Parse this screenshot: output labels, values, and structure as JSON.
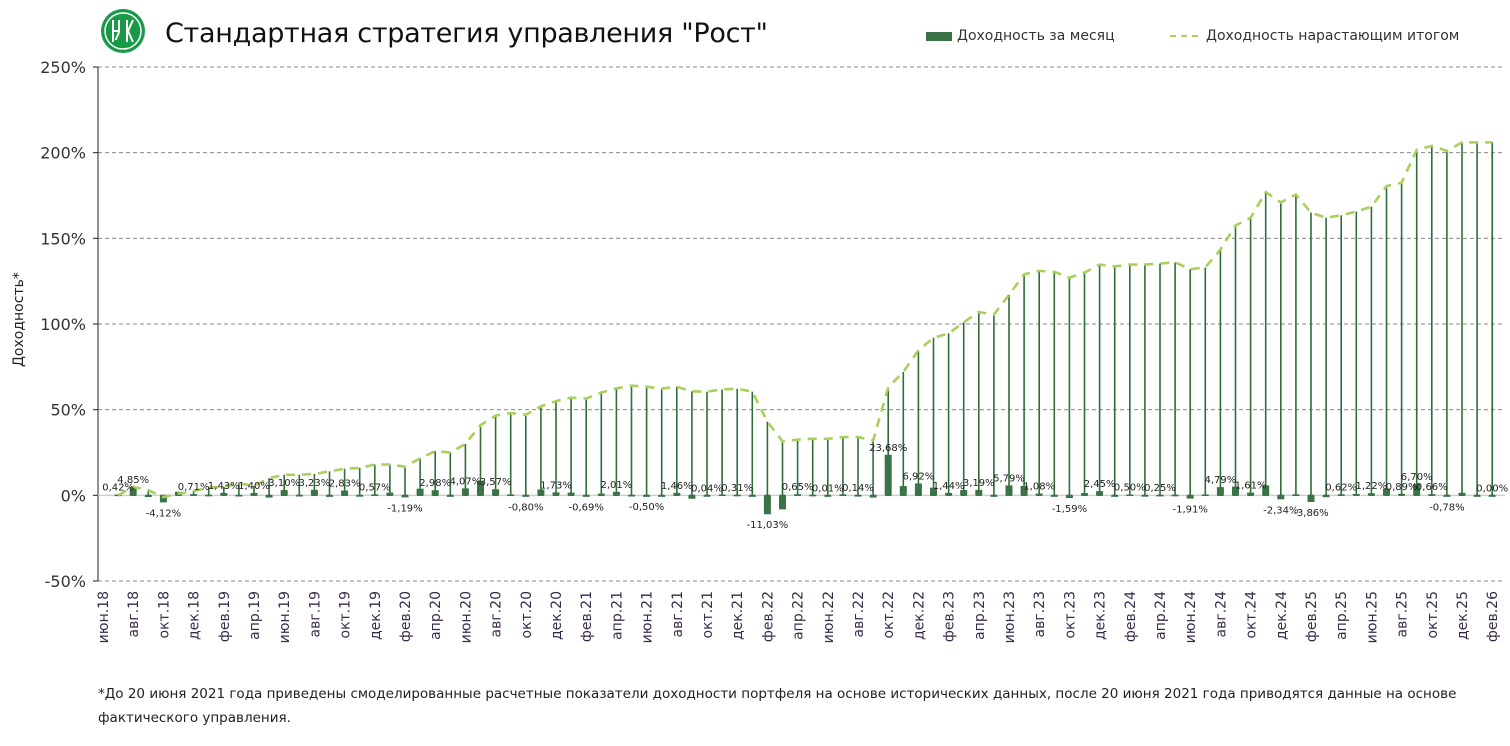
{
  "title": "Стандартная стратегия управления \"Рост\"",
  "legend": {
    "monthly": "Доходность за месяц",
    "cumulative": "Доходность нарастающим итогом"
  },
  "footnote": "*До 20 июня 2021 года приведены смоделированные расчетные показатели доходности портфеля на основе исторических данных, после 20 июня 2021 года приводятся данные на основе фактического управления.",
  "colors": {
    "bar": "#3a7446",
    "drop_line": "#2f6e3b",
    "cumulative_line": "#a9d05a",
    "grid": "#8a8a8a",
    "logo": "#1a9a48"
  },
  "chart_data": {
    "type": "bar+line",
    "title": "Стандартная стратегия управления \"Рост\"",
    "ylabel": "Доходность*",
    "xlabel": "",
    "ylim": [
      -50,
      250
    ],
    "yticks": [
      -50,
      0,
      50,
      100,
      150,
      200,
      250
    ],
    "ytick_labels": [
      "-50%",
      "0%",
      "50%",
      "100%",
      "150%",
      "200%",
      "250%"
    ],
    "grid": "horizontal dashed",
    "legend_placement": "top-right",
    "x_tick_labels": [
      "июн.18",
      "авг.18",
      "окт.18",
      "дек.18",
      "фев.19",
      "апр.19",
      "июн.19",
      "авг.19",
      "окт.19",
      "дек.19",
      "фев.20",
      "апр.20",
      "июн.20",
      "авг.20",
      "окт.20",
      "дек.20",
      "фев.21",
      "апр.21",
      "июн.21",
      "авг.21",
      "окт.21",
      "дек.21",
      "фев.22",
      "апр.22",
      "июн.22",
      "авг.22",
      "окт.22",
      "дек.22",
      "фев.23",
      "апр.23",
      "июн.23",
      "авг.23",
      "окт.23",
      "дек.23",
      "фев.24",
      "апр.24",
      "июн.24",
      "авг.24",
      "окт.24",
      "дек.24",
      "фев.25",
      "апр.25",
      "июн.25",
      "авг.25",
      "окт.25",
      "дек.25",
      "фев.26"
    ],
    "series": [
      {
        "name": "Доходность за месяц",
        "type": "bar",
        "unit": "%",
        "values": [
          null,
          0.42,
          4.85,
          -1.0,
          -4.12,
          2.1,
          0.71,
          0.3,
          1.43,
          0.2,
          1.4,
          -1.3,
          3.1,
          0.2,
          3.23,
          -0.5,
          2.83,
          0.1,
          0.57,
          1.6,
          -1.19,
          3.9,
          2.98,
          -0.6,
          4.07,
          8.4,
          3.57,
          0.5,
          -0.8,
          3.4,
          1.73,
          1.6,
          -0.69,
          1.0,
          2.01,
          0.2,
          -0.5,
          -0.5,
          1.46,
          -2.0,
          0.04,
          0.5,
          0.31,
          -0.3,
          -11.03,
          -8.2,
          0.65,
          0.3,
          0.01,
          0.6,
          0.14,
          -1.3,
          23.68,
          5.4,
          6.92,
          4.5,
          1.44,
          3.1,
          3.19,
          -0.6,
          5.79,
          5.5,
          1.08,
          -0.2,
          -1.59,
          1.3,
          2.45,
          -0.5,
          0.5,
          0.1,
          0.25,
          0.3,
          -1.91,
          0.5,
          4.79,
          5.1,
          1.61,
          5.8,
          -2.34,
          0.6,
          -3.86,
          -1.1,
          0.62,
          0.8,
          1.22,
          3.9,
          0.89,
          6.7,
          0.66,
          -0.78,
          1.5,
          0.0,
          0.0
        ],
        "data_labels": [
          null,
          "0,42%",
          "4,85%",
          null,
          "-4,12%",
          null,
          "0,71%",
          null,
          "1,43%",
          null,
          "1,40%",
          null,
          "3,10%",
          null,
          "3,23%",
          null,
          "2,83%",
          null,
          "0,57%",
          null,
          "-1,19%",
          null,
          "2,98%",
          null,
          "4,07%",
          null,
          "3,57%",
          null,
          "-0,80%",
          null,
          "1,73%",
          null,
          "-0,69%",
          null,
          "2,01%",
          null,
          "-0,50%",
          null,
          "1,46%",
          null,
          "0,04%",
          null,
          "0,31%",
          null,
          "-11,03%",
          null,
          "0,65%",
          null,
          "0,01%",
          null,
          "0,14%",
          null,
          "23,68%",
          null,
          "6,92%",
          null,
          "1,44%",
          null,
          "3,19%",
          null,
          "5,79%",
          null,
          "1,08%",
          null,
          "-1,59%",
          null,
          "2,45%",
          null,
          "0,50%",
          null,
          "0,25%",
          null,
          "-1,91%",
          null,
          "4,79%",
          null,
          "1,61%",
          null,
          "-2,34%",
          null,
          "-3,86%",
          null,
          "0,62%",
          null,
          "1,22%",
          null,
          "0,89%",
          "6,70%",
          "0,66%",
          "-0,78%",
          null,
          null,
          "0,00%"
        ]
      },
      {
        "name": "Доходность нарастающим итогом",
        "type": "line",
        "style": "dashed",
        "unit": "%",
        "values": [
          null,
          0,
          5,
          3,
          -1,
          1,
          2.5,
          4.5,
          5,
          7,
          5.5,
          10,
          12,
          12,
          12.5,
          14,
          15.5,
          16,
          18,
          18,
          16.7,
          21.6,
          25.8,
          25,
          30,
          41,
          46.5,
          48,
          47,
          52,
          55,
          57,
          56.5,
          60,
          62.4,
          64,
          63.4,
          62.3,
          63.4,
          60.7,
          60.5,
          61.8,
          62.2,
          60.5,
          43,
          31.5,
          32.5,
          33,
          33,
          34,
          34,
          32,
          63,
          72,
          84.6,
          92,
          94.5,
          101,
          107,
          105.5,
          117,
          129,
          131,
          130.5,
          127,
          130,
          134.7,
          133.6,
          134.7,
          134.7,
          135.3,
          136,
          132,
          133,
          143.5,
          157.5,
          162,
          177,
          171,
          175.6,
          165,
          162,
          163.5,
          165.6,
          168.5,
          180.5,
          182.5,
          201.7,
          204,
          201,
          206,
          206,
          206
        ]
      }
    ]
  }
}
